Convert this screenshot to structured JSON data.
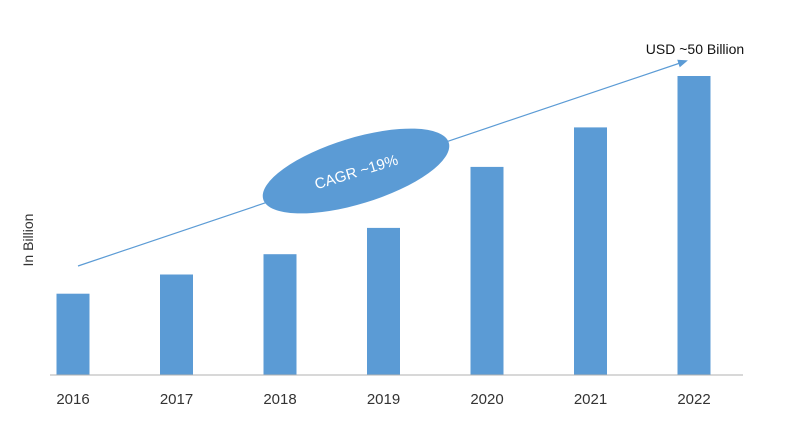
{
  "chart_data": {
    "type": "bar",
    "categories": [
      "2016",
      "2017",
      "2018",
      "2019",
      "2020",
      "2021",
      "2022"
    ],
    "values": [
      13.6,
      16.8,
      20.2,
      24.6,
      34.8,
      41.4,
      50.0
    ],
    "ylabel": "In Billion",
    "ylim": [
      0,
      50
    ],
    "bar_color": "#5b9bd5",
    "grid": false,
    "annotations": {
      "endpoint": "USD ~50 Billion",
      "cagr": "CAGR ~19%"
    }
  }
}
